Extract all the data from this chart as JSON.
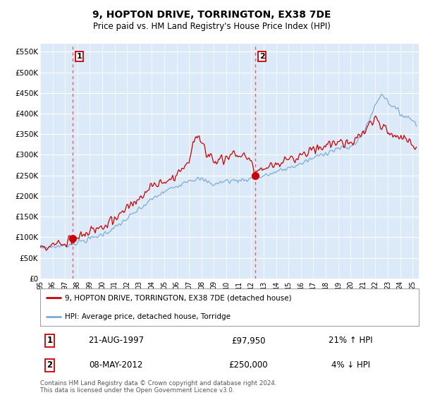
{
  "title": "9, HOPTON DRIVE, TORRINGTON, EX38 7DE",
  "subtitle": "Price paid vs. HM Land Registry's House Price Index (HPI)",
  "ylim": [
    0,
    570000
  ],
  "yticks": [
    0,
    50000,
    100000,
    150000,
    200000,
    250000,
    300000,
    350000,
    400000,
    450000,
    500000,
    550000
  ],
  "ytick_labels": [
    "£0",
    "£50K",
    "£100K",
    "£150K",
    "£200K",
    "£250K",
    "£300K",
    "£350K",
    "£400K",
    "£450K",
    "£500K",
    "£550K"
  ],
  "background_color": "#dce9f8",
  "grid_color": "#ffffff",
  "sale1_date_num": 1997.64,
  "sale1_price": 97950,
  "sale1_label": "1",
  "sale1_text": "21-AUG-1997",
  "sale1_price_text": "£97,950",
  "sale1_hpi_text": "21% ↑ HPI",
  "sale2_date_num": 2012.35,
  "sale2_price": 250000,
  "sale2_label": "2",
  "sale2_text": "08-MAY-2012",
  "sale2_price_text": "£250,000",
  "sale2_hpi_text": "4% ↓ HPI",
  "line1_color": "#cc0000",
  "line2_color": "#7dadd4",
  "legend_line1": "9, HOPTON DRIVE, TORRINGTON, EX38 7DE (detached house)",
  "legend_line2": "HPI: Average price, detached house, Torridge",
  "footer": "Contains HM Land Registry data © Crown copyright and database right 2024.\nThis data is licensed under the Open Government Licence v3.0.",
  "xmin": 1995.0,
  "xmax": 2025.5
}
